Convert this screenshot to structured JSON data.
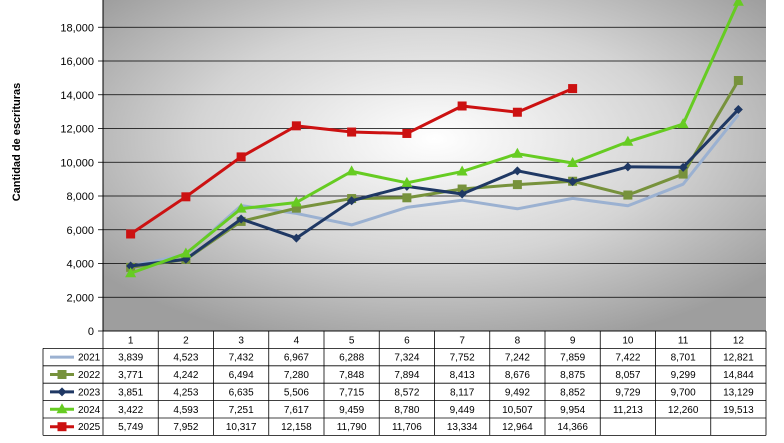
{
  "chart_data": {
    "type": "line",
    "title": "",
    "xlabel": "",
    "ylabel": "Cantidad de escrituras",
    "categories": [
      "1",
      "2",
      "3",
      "4",
      "5",
      "6",
      "7",
      "8",
      "9",
      "10",
      "11",
      "12"
    ],
    "ylim": [
      0,
      20000
    ],
    "yticks": [
      "0",
      "2,000",
      "4,000",
      "6,000",
      "8,000",
      "10,000",
      "12,000",
      "14,000",
      "16,000",
      "18,000"
    ],
    "grid": true,
    "legend": "data-table-left",
    "series": [
      {
        "name": "2021",
        "color": "#9bb1d1",
        "marker": "none",
        "values": [
          3839,
          4523,
          7432,
          6967,
          6288,
          7324,
          7752,
          7242,
          7859,
          7422,
          8701,
          12821
        ],
        "labels": [
          "3,839",
          "4,523",
          "7,432",
          "6,967",
          "6,288",
          "7,324",
          "7,752",
          "7,242",
          "7,859",
          "7,422",
          "8,701",
          "12,821"
        ]
      },
      {
        "name": "2022",
        "color": "#77923c",
        "marker": "square",
        "values": [
          3771,
          4242,
          6494,
          7280,
          7848,
          7894,
          8413,
          8676,
          8875,
          8057,
          9299,
          14844
        ],
        "labels": [
          "3,771",
          "4,242",
          "6,494",
          "7,280",
          "7,848",
          "7,894",
          "8,413",
          "8,676",
          "8,875",
          "8,057",
          "9,299",
          "14,844"
        ]
      },
      {
        "name": "2023",
        "color": "#1f3864",
        "marker": "diamond",
        "values": [
          3851,
          4253,
          6635,
          5506,
          7715,
          8572,
          8117,
          9492,
          8852,
          9729,
          9700,
          13129
        ],
        "labels": [
          "3,851",
          "4,253",
          "6,635",
          "5,506",
          "7,715",
          "8,572",
          "8,117",
          "9,492",
          "8,852",
          "9,729",
          "9,700",
          "13,129"
        ]
      },
      {
        "name": "2024",
        "color": "#66cc22",
        "marker": "triangle",
        "values": [
          3422,
          4593,
          7251,
          7617,
          9459,
          8780,
          9449,
          10507,
          9954,
          11213,
          12260,
          19513
        ],
        "labels": [
          "3,422",
          "4,593",
          "7,251",
          "7,617",
          "9,459",
          "8,780",
          "9,449",
          "10,507",
          "9,954",
          "11,213",
          "12,260",
          "19,513"
        ]
      },
      {
        "name": "2025",
        "color": "#cc1111",
        "marker": "square",
        "values": [
          5749,
          7952,
          10317,
          12158,
          11790,
          11706,
          13334,
          12964,
          14366,
          null,
          null,
          null
        ],
        "labels": [
          "5,749",
          "7,952",
          "10,317",
          "12,158",
          "11,790",
          "11,706",
          "13,334",
          "12,964",
          "14,366",
          "",
          "",
          ""
        ]
      }
    ]
  }
}
